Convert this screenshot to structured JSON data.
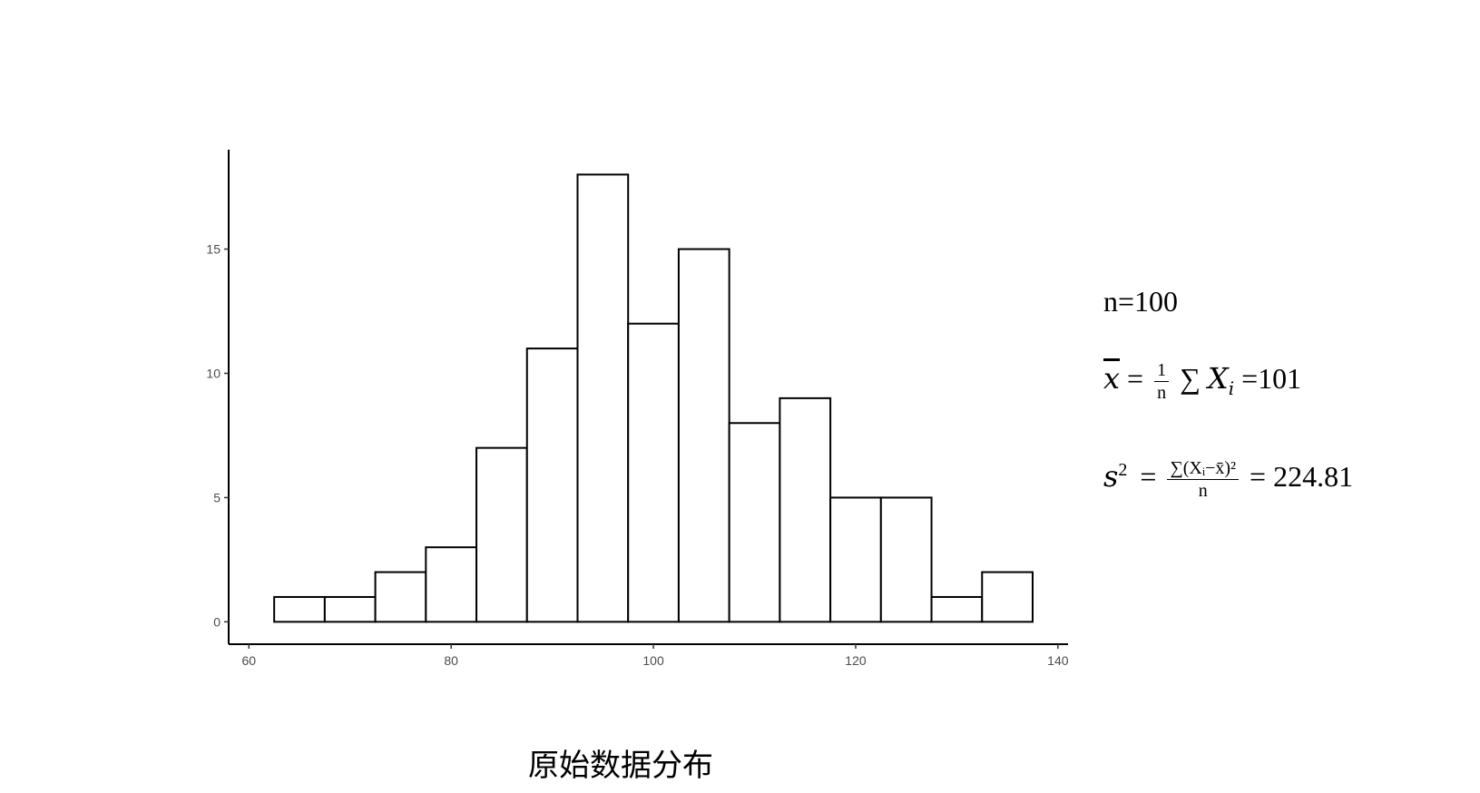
{
  "chart_data": {
    "type": "bar",
    "subtype": "histogram",
    "bin_width": 5,
    "bins": [
      {
        "start": 62.5,
        "end": 67.5,
        "count": 1
      },
      {
        "start": 67.5,
        "end": 72.5,
        "count": 1
      },
      {
        "start": 72.5,
        "end": 77.5,
        "count": 2
      },
      {
        "start": 77.5,
        "end": 82.5,
        "count": 3
      },
      {
        "start": 82.5,
        "end": 87.5,
        "count": 7
      },
      {
        "start": 87.5,
        "end": 92.5,
        "count": 11
      },
      {
        "start": 92.5,
        "end": 97.5,
        "count": 18
      },
      {
        "start": 97.5,
        "end": 102.5,
        "count": 12
      },
      {
        "start": 102.5,
        "end": 107.5,
        "count": 15
      },
      {
        "start": 107.5,
        "end": 112.5,
        "count": 8
      },
      {
        "start": 112.5,
        "end": 117.5,
        "count": 9
      },
      {
        "start": 117.5,
        "end": 122.5,
        "count": 5
      },
      {
        "start": 122.5,
        "end": 127.5,
        "count": 5
      },
      {
        "start": 127.5,
        "end": 132.5,
        "count": 1
      },
      {
        "start": 132.5,
        "end": 137.5,
        "count": 2
      }
    ],
    "x_ticks": [
      "60",
      "80",
      "100",
      "120",
      "140"
    ],
    "y_ticks": [
      "0",
      "5",
      "10",
      "15"
    ],
    "xlim": [
      58,
      141
    ],
    "ylim": [
      -0.9,
      19
    ],
    "xlabel": "",
    "ylabel": "",
    "grid": false,
    "bar_fill": "#ffffff",
    "bar_stroke": "#000000"
  },
  "stats": {
    "n": "n=100",
    "mean": {
      "xbar": "x",
      "eq": "=",
      "frac_num": "1",
      "frac_den": "n",
      "sum": "∑",
      "x": "X",
      "sub_i": "i",
      "result": "=101"
    },
    "variance": {
      "s": "s",
      "sup": "2",
      "eq": "=",
      "frac_num": "∑(Xᵢ−x̄)²",
      "frac_den": "n",
      "result": "= 224.81"
    }
  },
  "caption": "原始数据分布"
}
